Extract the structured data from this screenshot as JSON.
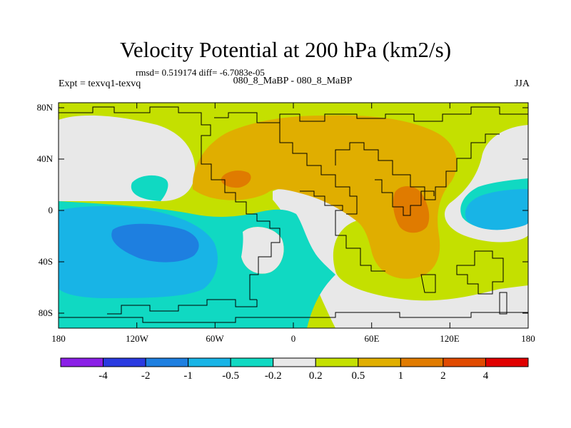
{
  "title": "Velocity Potential at 200 hPa (km2/s)",
  "stats": "rmsd= 0.519174 diff= -6.7083e-05",
  "left_label": "Expt = texvq1-texvq",
  "center_label": "080_8_MaBP - 080_8_MaBP",
  "right_label": "JJA",
  "lat_ticks": [
    "80N",
    "40N",
    "0",
    "40S",
    "80S"
  ],
  "lon_ticks": [
    "180",
    "120W",
    "60W",
    "0",
    "60E",
    "120E",
    "180"
  ],
  "colorbar": {
    "labels": [
      "-4",
      "-2",
      "-1",
      "-0.5",
      "-0.2",
      "0.2",
      "0.5",
      "1",
      "2",
      "4"
    ],
    "colors": [
      "#8a1fe6",
      "#2a3ae0",
      "#1e7fe0",
      "#18b4e6",
      "#10d9c2",
      "#e8e8e8",
      "#c4e000",
      "#e0ae00",
      "#e07b00",
      "#e04a00",
      "#e00000"
    ]
  },
  "chart_data": {
    "type": "contour-map",
    "variable": "Velocity Potential at 200 hPa",
    "units": "km2/s",
    "levels": [
      -4,
      -2,
      -1,
      -0.5,
      -0.2,
      0.2,
      0.5,
      1,
      2,
      4
    ],
    "lon_range": [
      -180,
      180
    ],
    "lat_range": [
      -90,
      90
    ]
  }
}
